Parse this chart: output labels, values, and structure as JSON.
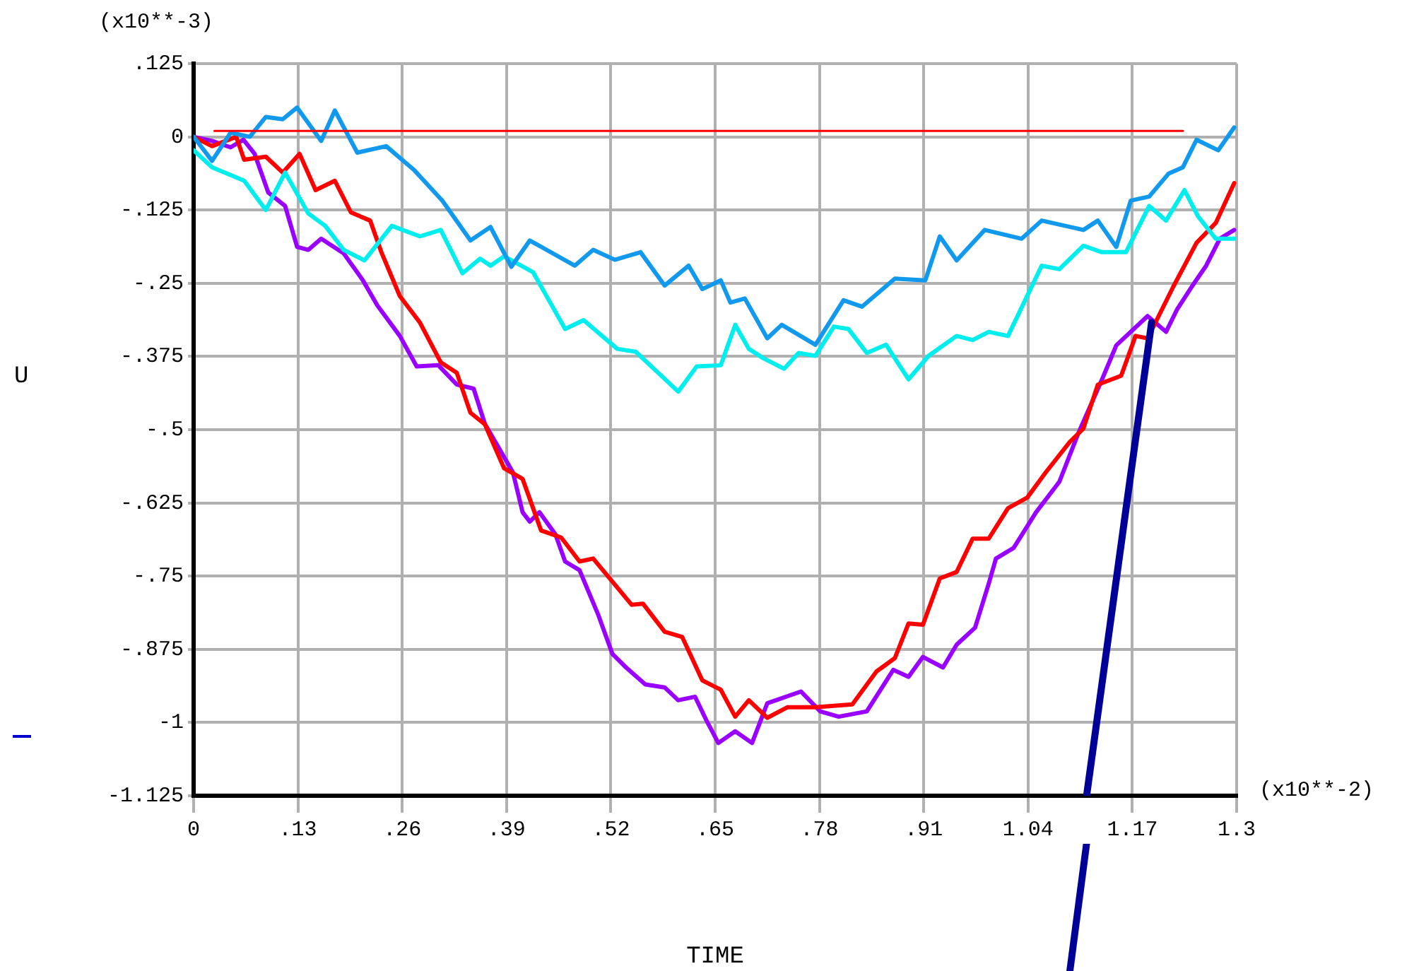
{
  "chart_data": {
    "type": "line",
    "xlabel": "TIME",
    "ylabel": "U",
    "annotations": [
      "(x10**-3)",
      "(x10**-2)"
    ],
    "xlim": [
      0,
      1.3
    ],
    "ylim": [
      -1.125,
      0.125
    ],
    "xticks": [
      0,
      {
        "value": 0.13,
        "label": ".13"
      },
      {
        "value": 0.26,
        "label": ".26"
      },
      {
        "value": 0.39,
        "label": ".39"
      },
      {
        "value": 0.52,
        "label": ".52"
      },
      {
        "value": 0.65,
        "label": ".65"
      },
      {
        "value": 0.78,
        "label": ".78"
      },
      {
        "value": 0.91,
        "label": ".91"
      },
      1.04,
      1.17,
      1.3
    ],
    "yticks": [
      {
        "value": 0.125,
        "label": ".125"
      },
      0,
      {
        "value": -0.125,
        "label": "-.125"
      },
      {
        "value": -0.25,
        "label": "-.25"
      },
      {
        "value": -0.375,
        "label": "-.375"
      },
      {
        "value": -0.5,
        "label": "-.5"
      },
      {
        "value": -0.625,
        "label": "-.625"
      },
      {
        "value": -0.75,
        "label": "-.75"
      },
      {
        "value": -0.875,
        "label": "-.875"
      },
      {
        "value": -1,
        "label": "-1"
      },
      -1.125
    ],
    "grid": true,
    "marker": "none",
    "line_style": "solid",
    "series": [
      {
        "color": "#ff0000",
        "x": [
          0.026,
          1.233
        ],
        "values": [
          0.01,
          0.01
        ]
      },
      {
        "color": "#000099",
        "x": [
          1.113,
          1.194
        ],
        "values": [
          -1.125,
          -0.317
        ]
      },
      {
        "color": "#1199ee",
        "x": [
          0,
          0.023,
          0.046,
          0.07,
          0.09,
          0.111,
          0.129,
          0.159,
          0.176,
          0.204,
          0.24,
          0.275,
          0.31,
          0.345,
          0.37,
          0.396,
          0.419,
          0.475,
          0.498,
          0.525,
          0.557,
          0.587,
          0.617,
          0.634,
          0.657,
          0.669,
          0.687,
          0.715,
          0.733,
          0.775,
          0.81,
          0.833,
          0.874,
          0.912,
          0.93,
          0.951,
          0.986,
          1.032,
          1.057,
          1.109,
          1.127,
          1.15,
          1.168,
          1.191,
          1.215,
          1.233,
          1.25,
          1.277,
          1.297
        ],
        "values": [
          0,
          -0.041,
          0.007,
          0,
          0.034,
          0.03,
          0.05,
          -0.007,
          0.045,
          -0.027,
          -0.016,
          -0.057,
          -0.109,
          -0.177,
          -0.154,
          -0.222,
          -0.177,
          -0.22,
          -0.193,
          -0.21,
          -0.197,
          -0.254,
          -0.22,
          -0.26,
          -0.245,
          -0.283,
          -0.276,
          -0.344,
          -0.321,
          -0.355,
          -0.279,
          -0.29,
          -0.242,
          -0.245,
          -0.17,
          -0.211,
          -0.159,
          -0.174,
          -0.143,
          -0.159,
          -0.143,
          -0.188,
          -0.109,
          -0.102,
          -0.063,
          -0.052,
          -0.005,
          -0.023,
          0.016
        ]
      },
      {
        "color": "#00eeee",
        "x": [
          0,
          0.023,
          0.063,
          0.09,
          0.114,
          0.143,
          0.164,
          0.187,
          0.213,
          0.247,
          0.282,
          0.308,
          0.335,
          0.357,
          0.37,
          0.387,
          0.423,
          0.463,
          0.486,
          0.528,
          0.551,
          0.604,
          0.627,
          0.657,
          0.675,
          0.692,
          0.71,
          0.736,
          0.754,
          0.775,
          0.798,
          0.816,
          0.839,
          0.863,
          0.891,
          0.916,
          0.951,
          0.971,
          0.991,
          1.015,
          1.057,
          1.079,
          1.109,
          1.132,
          1.162,
          1.191,
          1.212,
          1.235,
          1.252,
          1.274,
          1.297
        ],
        "values": [
          -0.023,
          -0.052,
          -0.075,
          -0.125,
          -0.061,
          -0.131,
          -0.152,
          -0.193,
          -0.211,
          -0.152,
          -0.17,
          -0.159,
          -0.233,
          -0.208,
          -0.22,
          -0.204,
          -0.231,
          -0.328,
          -0.313,
          -0.362,
          -0.367,
          -0.435,
          -0.392,
          -0.39,
          -0.321,
          -0.362,
          -0.378,
          -0.396,
          -0.369,
          -0.374,
          -0.324,
          -0.328,
          -0.369,
          -0.355,
          -0.414,
          -0.374,
          -0.34,
          -0.347,
          -0.333,
          -0.34,
          -0.22,
          -0.226,
          -0.186,
          -0.197,
          -0.197,
          -0.118,
          -0.143,
          -0.091,
          -0.136,
          -0.174,
          -0.174
        ]
      },
      {
        "color": "#ff0000",
        "x": [
          0,
          0.023,
          0.053,
          0.063,
          0.09,
          0.111,
          0.132,
          0.152,
          0.176,
          0.196,
          0.22,
          0.234,
          0.257,
          0.282,
          0.308,
          0.328,
          0.345,
          0.363,
          0.387,
          0.41,
          0.433,
          0.458,
          0.481,
          0.498,
          0.546,
          0.56,
          0.587,
          0.609,
          0.634,
          0.657,
          0.675,
          0.692,
          0.715,
          0.74,
          0.775,
          0.821,
          0.851,
          0.874,
          0.891,
          0.909,
          0.93,
          0.951,
          0.971,
          0.991,
          1.015,
          1.039,
          1.062,
          1.092,
          1.109,
          1.127,
          1.156,
          1.174,
          1.189,
          1.221,
          1.25,
          1.274,
          1.297
        ],
        "values": [
          0,
          -0.016,
          0,
          -0.039,
          -0.034,
          -0.061,
          -0.029,
          -0.091,
          -0.075,
          -0.129,
          -0.143,
          -0.197,
          -0.272,
          -0.317,
          -0.385,
          -0.403,
          -0.471,
          -0.491,
          -0.566,
          -0.584,
          -0.672,
          -0.684,
          -0.725,
          -0.72,
          -0.799,
          -0.797,
          -0.845,
          -0.854,
          -0.928,
          -0.944,
          -0.99,
          -0.962,
          -0.992,
          -0.974,
          -0.974,
          -0.969,
          -0.913,
          -0.89,
          -0.831,
          -0.833,
          -0.754,
          -0.743,
          -0.686,
          -0.686,
          -0.634,
          -0.616,
          -0.573,
          -0.521,
          -0.498,
          -0.423,
          -0.408,
          -0.34,
          -0.344,
          -0.256,
          -0.181,
          -0.147,
          -0.079
        ]
      },
      {
        "color": "#9900ff",
        "x": [
          0,
          0.023,
          0.046,
          0.062,
          0.076,
          0.093,
          0.114,
          0.129,
          0.143,
          0.159,
          0.187,
          0.211,
          0.229,
          0.257,
          0.278,
          0.305,
          0.328,
          0.349,
          0.363,
          0.398,
          0.41,
          0.419,
          0.431,
          0.451,
          0.463,
          0.481,
          0.504,
          0.522,
          0.539,
          0.563,
          0.587,
          0.604,
          0.625,
          0.639,
          0.654,
          0.675,
          0.696,
          0.715,
          0.757,
          0.781,
          0.804,
          0.839,
          0.872,
          0.891,
          0.909,
          0.934,
          0.951,
          0.974,
          0.991,
          1.0,
          1.022,
          1.05,
          1.079,
          1.103,
          1.132,
          1.15,
          1.189,
          1.212,
          1.226,
          1.244,
          1.262,
          1.279,
          1.297
        ],
        "values": [
          0,
          -0.007,
          -0.018,
          -0.005,
          -0.029,
          -0.095,
          -0.118,
          -0.188,
          -0.193,
          -0.174,
          -0.199,
          -0.245,
          -0.288,
          -0.34,
          -0.392,
          -0.39,
          -0.423,
          -0.43,
          -0.49,
          -0.573,
          -0.641,
          -0.657,
          -0.641,
          -0.679,
          -0.725,
          -0.74,
          -0.815,
          -0.883,
          -0.906,
          -0.935,
          -0.94,
          -0.962,
          -0.956,
          -0.996,
          -1.035,
          -1.015,
          -1.035,
          -0.967,
          -0.947,
          -0.981,
          -0.99,
          -0.981,
          -0.91,
          -0.922,
          -0.888,
          -0.906,
          -0.867,
          -0.838,
          -0.763,
          -0.72,
          -0.702,
          -0.641,
          -0.589,
          -0.505,
          -0.415,
          -0.356,
          -0.306,
          -0.333,
          -0.294,
          -0.256,
          -0.22,
          -0.174,
          -0.159
        ]
      }
    ]
  }
}
